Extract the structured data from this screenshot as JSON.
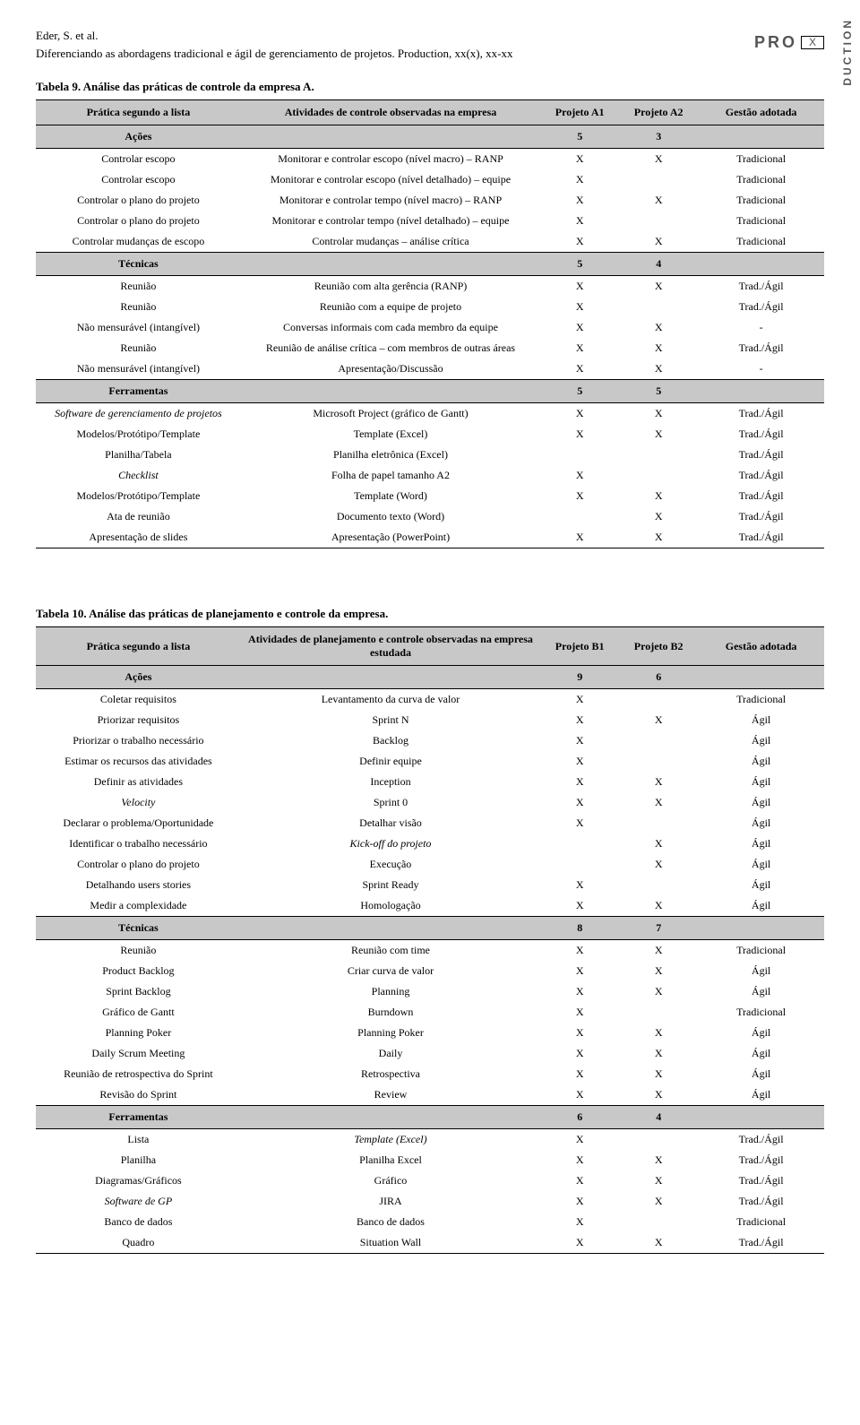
{
  "header": {
    "author": "Eder, S. et al.",
    "subtitle": "Diferenciando as abordagens tradicional e ágil de gerenciamento de projetos. Production, xx(x), xx-xx",
    "logo_top": "DUCTION",
    "logo_bottom": "PRO",
    "logo_x": "X"
  },
  "table9": {
    "caption": "Tabela 9. Análise das práticas de controle da empresa A.",
    "columns": [
      "Prática segundo a lista",
      "Atividades de controle observadas na empresa",
      "Projeto A1",
      "Projeto A2",
      "Gestão adotada"
    ],
    "sections": [
      {
        "label": "Ações",
        "c1": "5",
        "c2": "3",
        "rows": [
          {
            "c": [
              "Controlar escopo",
              "Monitorar e controlar escopo (nível macro) – RANP",
              "X",
              "X",
              "Tradicional"
            ]
          },
          {
            "c": [
              "Controlar escopo",
              "Monitorar e controlar escopo (nível detalhado) – equipe",
              "X",
              "",
              "Tradicional"
            ]
          },
          {
            "c": [
              "Controlar o plano do projeto",
              "Monitorar e controlar tempo (nível macro) – RANP",
              "X",
              "X",
              "Tradicional"
            ]
          },
          {
            "c": [
              "Controlar o plano do projeto",
              "Monitorar e controlar tempo (nível detalhado) – equipe",
              "X",
              "",
              "Tradicional"
            ]
          },
          {
            "c": [
              "Controlar mudanças de escopo",
              "Controlar mudanças – análise crítica",
              "X",
              "X",
              "Tradicional"
            ]
          }
        ]
      },
      {
        "label": "Técnicas",
        "c1": "5",
        "c2": "4",
        "rows": [
          {
            "c": [
              "Reunião",
              "Reunião com alta gerência (RANP)",
              "X",
              "X",
              "Trad./Ágil"
            ]
          },
          {
            "c": [
              "Reunião",
              "Reunião com a equipe de projeto",
              "X",
              "",
              "Trad./Ágil"
            ]
          },
          {
            "c": [
              "Não mensurável (intangível)",
              "Conversas informais com cada membro da equipe",
              "X",
              "X",
              "-"
            ]
          },
          {
            "c": [
              "Reunião",
              "Reunião de análise crítica – com membros de outras áreas",
              "X",
              "X",
              "Trad./Ágil"
            ]
          },
          {
            "c": [
              "Não mensurável (intangível)",
              "Apresentação/Discussão",
              "X",
              "X",
              "-"
            ]
          }
        ]
      },
      {
        "label": "Ferramentas",
        "c1": "5",
        "c2": "5",
        "rows": [
          {
            "c": [
              "Software de gerenciamento de projetos",
              "Microsoft Project (gráfico de Gantt)",
              "X",
              "X",
              "Trad./Ágil"
            ],
            "italic0": true
          },
          {
            "c": [
              "Modelos/Protótipo/Template",
              "Template (Excel)",
              "X",
              "X",
              "Trad./Ágil"
            ],
            "italic_part": true
          },
          {
            "c": [
              "Planilha/Tabela",
              "Planilha eletrônica (Excel)",
              "",
              "",
              "Trad./Ágil"
            ]
          },
          {
            "c": [
              "Checklist",
              "Folha de papel tamanho A2",
              "X",
              "",
              "Trad./Ágil"
            ],
            "italic0": true
          },
          {
            "c": [
              "Modelos/Protótipo/Template",
              "Template (Word)",
              "X",
              "X",
              "Trad./Ágil"
            ],
            "italic_part": true
          },
          {
            "c": [
              "Ata de reunião",
              "Documento texto (Word)",
              "",
              "X",
              "Trad./Ágil"
            ]
          },
          {
            "c": [
              "Apresentação de slides",
              "Apresentação (PowerPoint)",
              "X",
              "X",
              "Trad./Ágil"
            ],
            "italic_part": true
          }
        ]
      }
    ]
  },
  "table10": {
    "caption": "Tabela 10. Análise das práticas de planejamento e controle da empresa.",
    "columns": [
      "Prática segundo a lista",
      "Atividades de planejamento e controle observadas na empresa estudada",
      "Projeto B1",
      "Projeto B2",
      "Gestão adotada"
    ],
    "sections": [
      {
        "label": "Ações",
        "c1": "9",
        "c2": "6",
        "rows": [
          {
            "c": [
              "Coletar requisitos",
              "Levantamento da curva de valor",
              "X",
              "",
              "Tradicional"
            ]
          },
          {
            "c": [
              "Priorizar requisitos",
              "Sprint N",
              "X",
              "X",
              "Ágil"
            ]
          },
          {
            "c": [
              "Priorizar o trabalho necessário",
              "Backlog",
              "X",
              "",
              "Ágil"
            ]
          },
          {
            "c": [
              "Estimar os recursos das atividades",
              "Definir equipe",
              "X",
              "",
              "Ágil"
            ]
          },
          {
            "c": [
              "Definir as atividades",
              "Inception",
              "X",
              "X",
              "Ágil"
            ]
          },
          {
            "c": [
              "Velocity",
              "Sprint 0",
              "X",
              "X",
              "Ágil"
            ],
            "italic0": true
          },
          {
            "c": [
              "Declarar o problema/Oportunidade",
              "Detalhar visão",
              "X",
              "",
              "Ágil"
            ]
          },
          {
            "c": [
              "Identificar o trabalho necessário",
              "Kick-off do projeto",
              "",
              "X",
              "Ágil"
            ],
            "italic1": true
          },
          {
            "c": [
              "Controlar o plano do projeto",
              "Execução",
              "",
              "X",
              "Ágil"
            ]
          },
          {
            "c": [
              "Detalhando users stories",
              "Sprint Ready",
              "X",
              "",
              "Ágil"
            ],
            "italic_part": true
          },
          {
            "c": [
              "Medir a complexidade",
              "Homologação",
              "X",
              "X",
              "Ágil"
            ]
          }
        ]
      },
      {
        "label": "Técnicas",
        "c1": "8",
        "c2": "7",
        "rows": [
          {
            "c": [
              "Reunião",
              "Reunião com time",
              "X",
              "X",
              "Tradicional"
            ]
          },
          {
            "c": [
              "Product Backlog",
              "Criar curva de valor",
              "X",
              "X",
              "Ágil"
            ]
          },
          {
            "c": [
              "Sprint Backlog",
              "Planning",
              "X",
              "X",
              "Ágil"
            ]
          },
          {
            "c": [
              "Gráfico de Gantt",
              "Burndown",
              "X",
              "",
              "Tradicional"
            ]
          },
          {
            "c": [
              "Planning Poker",
              "Planning Poker",
              "X",
              "X",
              "Ágil"
            ]
          },
          {
            "c": [
              "Daily Scrum Meeting",
              "Daily",
              "X",
              "X",
              "Ágil"
            ]
          },
          {
            "c": [
              "Reunião de retrospectiva do Sprint",
              "Retrospectiva",
              "X",
              "X",
              "Ágil"
            ]
          },
          {
            "c": [
              "Revisão do Sprint",
              "Review",
              "X",
              "X",
              "Ágil"
            ]
          }
        ]
      },
      {
        "label": "Ferramentas",
        "c1": "6",
        "c2": "4",
        "rows": [
          {
            "c": [
              "Lista",
              "Template (Excel)",
              "X",
              "",
              "Trad./Ágil"
            ],
            "italic1": true
          },
          {
            "c": [
              "Planilha",
              "Planilha Excel",
              "X",
              "X",
              "Trad./Ágil"
            ]
          },
          {
            "c": [
              "Diagramas/Gráficos",
              "Gráfico",
              "X",
              "X",
              "Trad./Ágil"
            ]
          },
          {
            "c": [
              "Software de GP",
              "JIRA",
              "X",
              "X",
              "Trad./Ágil"
            ],
            "italic0": true
          },
          {
            "c": [
              "Banco de dados",
              "Banco de dados",
              "X",
              "",
              "Tradicional"
            ]
          },
          {
            "c": [
              "Quadro",
              "Situation Wall",
              "X",
              "X",
              "Trad./Ágil"
            ]
          }
        ]
      }
    ]
  }
}
